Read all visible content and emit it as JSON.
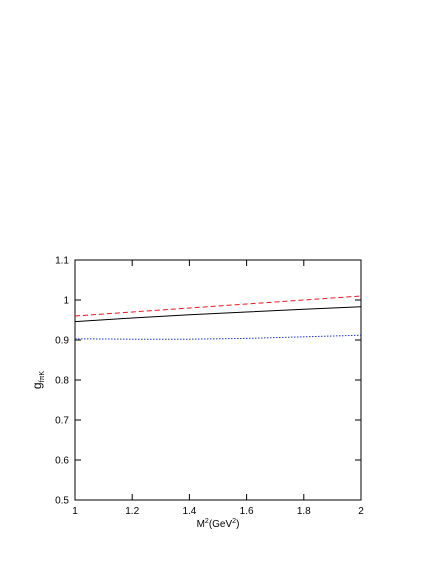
{
  "chart_data": {
    "type": "line",
    "x": [
      1,
      1.2,
      1.4,
      1.6,
      1.8,
      2
    ],
    "series": [
      {
        "color": "#000000",
        "dash": "solid",
        "values": [
          0.946,
          0.955,
          0.963,
          0.97,
          0.977,
          0.983
        ]
      },
      {
        "color": "#e8141c",
        "dash": "dashed",
        "values": [
          0.96,
          0.97,
          0.98,
          0.99,
          1.0,
          1.01
        ]
      },
      {
        "color": "#2030d0",
        "dash": "dotted",
        "values": [
          0.903,
          0.902,
          0.902,
          0.904,
          0.908,
          0.912
        ]
      }
    ],
    "xlim": [
      1,
      2
    ],
    "xticks": [
      1,
      1.2,
      1.4,
      1.6,
      1.8,
      2
    ],
    "ylim": [
      0.5,
      1.1
    ],
    "yticks": [
      0.5,
      0.6,
      0.7,
      0.8,
      0.9,
      1,
      1.1
    ],
    "xlabel": [
      {
        "text": "M",
        "sup": false
      },
      {
        "text": "2",
        "sup": true
      },
      {
        "text": "(GeV",
        "sup": false
      },
      {
        "text": "2",
        "sup": true
      },
      {
        "text": ")",
        "sup": false
      }
    ],
    "ylabel": {
      "main": "g",
      "sub": "fπK"
    },
    "grid": false
  }
}
